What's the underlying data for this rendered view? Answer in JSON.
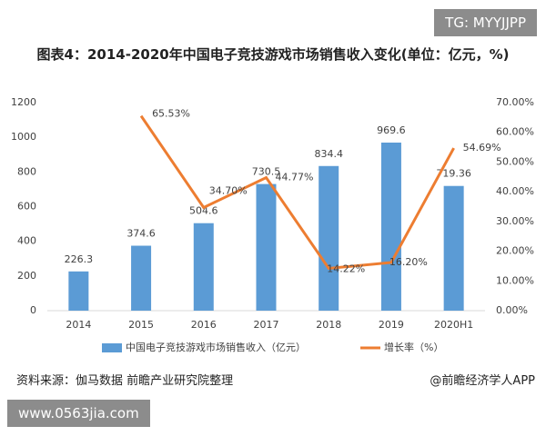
{
  "badge_top": "TG: MYYJJPP",
  "badge_bottom": "www.0563jia.com",
  "source": "资料来源：伽马数据 前瞻产业研究院整理",
  "credit": "@前瞻经济学人APP",
  "chart_data": {
    "type": "bar-line",
    "title": "图表4：2014-2020年中国电子竞技游戏市场销售收入变化(单位：亿元，%)",
    "categories": [
      "2014",
      "2015",
      "2016",
      "2017",
      "2018",
      "2019",
      "2020H1"
    ],
    "series": [
      {
        "name": "中国电子竞技游戏市场销售收入（亿元）",
        "type": "bar",
        "color": "#5b9bd5",
        "values": [
          226.3,
          374.6,
          504.6,
          730.5,
          834.4,
          969.6,
          719.36
        ]
      },
      {
        "name": "增长率（%）",
        "type": "line",
        "axis": "y2",
        "color": "#ed7d31",
        "values": [
          null,
          65.53,
          34.7,
          44.77,
          14.22,
          16.2,
          54.69
        ],
        "value_labels": [
          null,
          "65.53%",
          "34.70%",
          "44.77%",
          "14.22%",
          "16.20%",
          "54.69%"
        ]
      }
    ],
    "ylim": [
      0,
      1200
    ],
    "yticks": [
      0,
      200,
      400,
      600,
      800,
      1000,
      1200
    ],
    "y2lim": [
      0,
      70
    ],
    "y2ticks": [
      {
        "value": 0,
        "label": "0.00%"
      },
      {
        "value": 10,
        "label": "10.00%"
      },
      {
        "value": 20,
        "label": "20.00%"
      },
      {
        "value": 30,
        "label": "30.00%"
      },
      {
        "value": 40,
        "label": "40.00%"
      },
      {
        "value": 50,
        "label": "50.00%"
      },
      {
        "value": 60,
        "label": "60.00%"
      },
      {
        "value": 70,
        "label": "70.00%"
      }
    ],
    "grid": false,
    "legend": "bottom"
  }
}
